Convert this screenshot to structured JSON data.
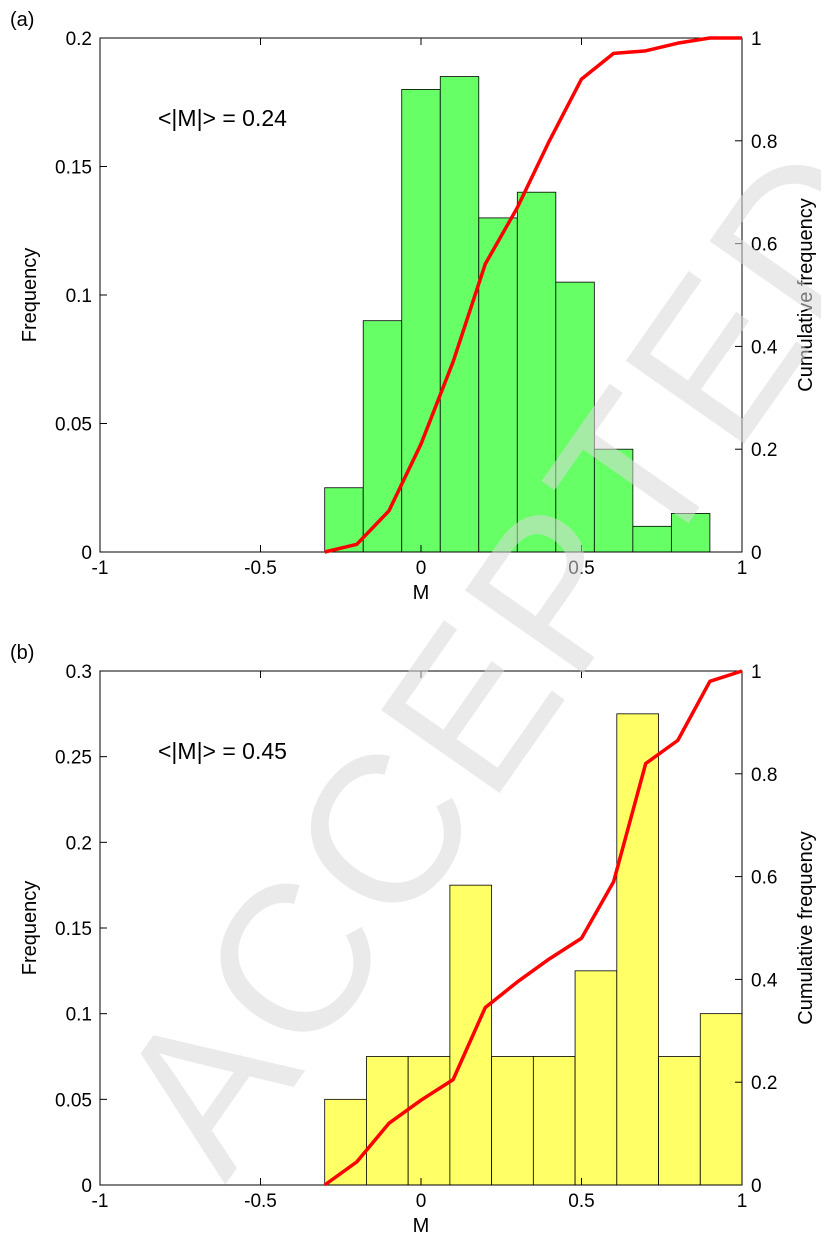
{
  "watermark": "ACCEPTED MANUSCRIPT",
  "chart_data": [
    {
      "type": "bar",
      "panel_label": "(a)",
      "annotation": "<|M|> = 0.24",
      "xlabel": "M",
      "ylabel": "Frequency",
      "y2label": "Cumulative frequency",
      "xlim": [
        -1,
        1
      ],
      "ylim": [
        0,
        0.2
      ],
      "y2lim": [
        0,
        1
      ],
      "xticks": [
        "-1",
        "-0.5",
        "0",
        "0.5",
        "1"
      ],
      "yticks": [
        "0",
        "0.05",
        "0.1",
        "0.15",
        "0.2"
      ],
      "y2ticks": [
        "0",
        "0.2",
        "0.4",
        "0.6",
        "0.8",
        "1"
      ],
      "bar_color": "#66ff66",
      "line_color": "#ff0000",
      "bins": [
        {
          "x0": -0.3,
          "x1": -0.18,
          "value": 0.025
        },
        {
          "x0": -0.18,
          "x1": -0.06,
          "value": 0.09
        },
        {
          "x0": -0.06,
          "x1": 0.06,
          "value": 0.18
        },
        {
          "x0": 0.06,
          "x1": 0.18,
          "value": 0.185
        },
        {
          "x0": 0.18,
          "x1": 0.3,
          "value": 0.13
        },
        {
          "x0": 0.3,
          "x1": 0.42,
          "value": 0.14
        },
        {
          "x0": 0.42,
          "x1": 0.54,
          "value": 0.105
        },
        {
          "x0": 0.54,
          "x1": 0.66,
          "value": 0.04
        },
        {
          "x0": 0.66,
          "x1": 0.78,
          "value": 0.01
        },
        {
          "x0": 0.78,
          "x1": 0.9,
          "value": 0.015
        }
      ],
      "cumulative": {
        "x": [
          -0.3,
          -0.2,
          -0.1,
          0.0,
          0.1,
          0.2,
          0.3,
          0.4,
          0.5,
          0.6,
          0.7,
          0.8,
          0.9,
          1.0
        ],
        "y": [
          0.0,
          0.015,
          0.08,
          0.21,
          0.37,
          0.56,
          0.67,
          0.8,
          0.92,
          0.97,
          0.975,
          0.99,
          1.0,
          1.0
        ]
      }
    },
    {
      "type": "bar",
      "panel_label": "(b)",
      "annotation": "<|M|> = 0.45",
      "xlabel": "M",
      "ylabel": "Frequency",
      "y2label": "Cumulative frequency",
      "xlim": [
        -1,
        1
      ],
      "ylim": [
        0,
        0.3
      ],
      "y2lim": [
        0,
        1
      ],
      "xticks": [
        "-1",
        "-0.5",
        "0",
        "0.5",
        "1"
      ],
      "yticks": [
        "0",
        "0.05",
        "0.1",
        "0.15",
        "0.2",
        "0.25",
        "0.3"
      ],
      "y2ticks": [
        "0",
        "0.2",
        "0.4",
        "0.6",
        "0.8",
        "1"
      ],
      "bar_color": "#ffff66",
      "line_color": "#ff0000",
      "bins": [
        {
          "x0": -0.3,
          "x1": -0.17,
          "value": 0.05
        },
        {
          "x0": -0.17,
          "x1": -0.04,
          "value": 0.075
        },
        {
          "x0": -0.04,
          "x1": 0.09,
          "value": 0.075
        },
        {
          "x0": 0.09,
          "x1": 0.22,
          "value": 0.175
        },
        {
          "x0": 0.22,
          "x1": 0.35,
          "value": 0.075
        },
        {
          "x0": 0.35,
          "x1": 0.48,
          "value": 0.075
        },
        {
          "x0": 0.48,
          "x1": 0.61,
          "value": 0.125
        },
        {
          "x0": 0.61,
          "x1": 0.74,
          "value": 0.275
        },
        {
          "x0": 0.74,
          "x1": 0.87,
          "value": 0.075
        },
        {
          "x0": 0.87,
          "x1": 1.0,
          "value": 0.1
        }
      ],
      "cumulative": {
        "x": [
          -0.3,
          -0.2,
          -0.1,
          0.0,
          0.1,
          0.2,
          0.3,
          0.4,
          0.5,
          0.6,
          0.7,
          0.8,
          0.9,
          1.0
        ],
        "y": [
          0.0,
          0.045,
          0.12,
          0.165,
          0.205,
          0.345,
          0.395,
          0.44,
          0.48,
          0.59,
          0.82,
          0.865,
          0.98,
          1.0
        ]
      }
    }
  ]
}
